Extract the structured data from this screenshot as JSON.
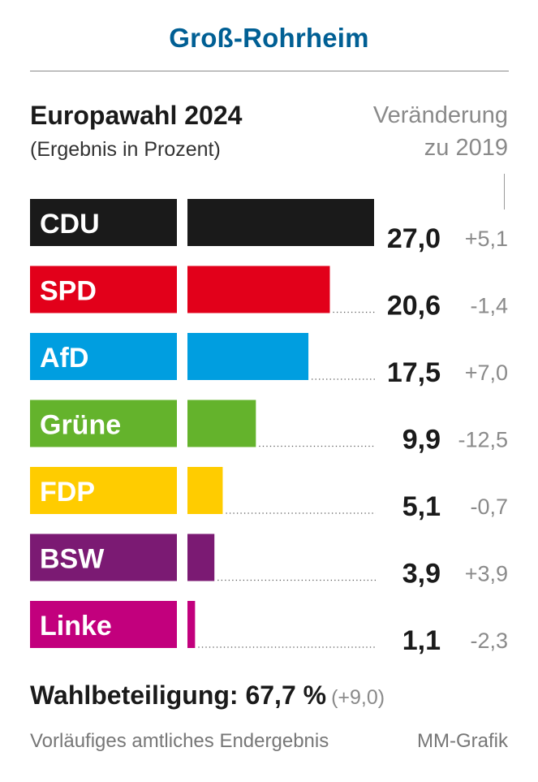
{
  "header": {
    "place": "Groß-Rohrheim"
  },
  "change_header": {
    "line1": "Veränderung",
    "line2": "zu 2019"
  },
  "footer": {
    "turnout_label": "Wahlbeteiligung: 67,7 %",
    "turnout_change": "(+9,0)",
    "note": "Vorläufiges amtliches Endergebnis",
    "credit": "MM-Grafik"
  },
  "chart_data": {
    "type": "bar",
    "title": "Europawahl 2024",
    "subtitle": "(Ergebnis in Prozent)",
    "categories": [
      "CDU",
      "SPD",
      "AfD",
      "Grüne",
      "FDP",
      "BSW",
      "Linke"
    ],
    "values": [
      27.0,
      20.6,
      17.5,
      9.9,
      5.1,
      3.9,
      1.1
    ],
    "value_labels": [
      "27,0",
      "20,6",
      "17,5",
      "9,9",
      "5,1",
      "3,9",
      "1,1"
    ],
    "change_labels": [
      "+5,1",
      "-1,4",
      "+7,0",
      "-12,5",
      "-0,7",
      "+3,9",
      "-2,3"
    ],
    "changes": [
      5.1,
      -1.4,
      7.0,
      -12.5,
      -0.7,
      3.9,
      -2.3
    ],
    "colors": [
      "#1a1a1a",
      "#e2001a",
      "#009ee0",
      "#64b32c",
      "#ffcc00",
      "#7b1a73",
      "#c2007d"
    ],
    "label_text_colors": [
      "#ffffff",
      "#ffffff",
      "#ffffff",
      "#ffffff",
      "#ffffff",
      "#ffffff",
      "#ffffff"
    ],
    "orientation": "horizontal",
    "grid": false,
    "legend": "none"
  }
}
